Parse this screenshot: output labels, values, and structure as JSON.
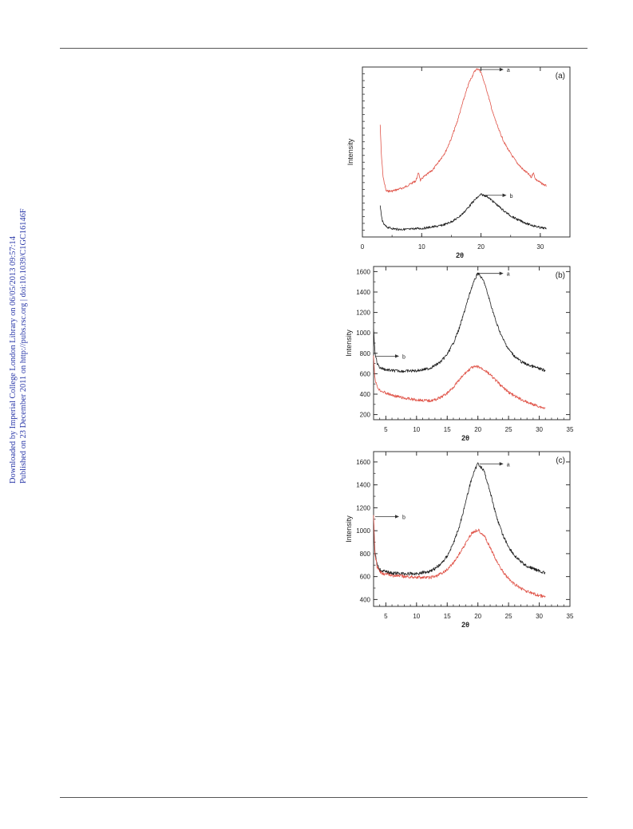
{
  "side_note": {
    "line1": "Downloaded by Imperial College London Library on 06/05/2013 09:57:14",
    "line2": "Published on 23 December 2011 on http://pubs.rsc.org | doi:10.1039/C1GC16146F"
  },
  "colors": {
    "black_series": "#1f1f1f",
    "red_series": "#e0554a",
    "frame": "#333333",
    "link_text": "#2a38a8"
  },
  "chart_data": [
    {
      "type": "line",
      "panel_label": "(a)",
      "xlabel": "2θ",
      "ylabel": "Intensity",
      "xlim": [
        0,
        35
      ],
      "x_ticks": [
        0,
        10,
        20,
        30
      ],
      "ylim": [
        0,
        100
      ],
      "y_tick_labels_shown": false,
      "series": [
        {
          "name": "a",
          "color": "#e0554a",
          "x": [
            3.0,
            3.2,
            3.5,
            4,
            5,
            6,
            7,
            8,
            9,
            9.5,
            9.8,
            10.2,
            11,
            12,
            13,
            14,
            15,
            16,
            17,
            18,
            19,
            19.5,
            20,
            21,
            22,
            23,
            24,
            25,
            26,
            27,
            28,
            28.5,
            28.8,
            29.2,
            30,
            31
          ],
          "y": [
            66,
            48,
            35,
            27,
            27,
            28,
            29,
            31,
            33,
            38,
            33,
            35,
            37,
            40,
            45,
            50,
            58,
            68,
            80,
            91,
            98,
            99,
            97,
            86,
            73,
            63,
            55,
            49,
            44,
            40,
            37,
            35,
            38,
            34,
            32,
            30
          ]
        },
        {
          "name": "b",
          "color": "#1f1f1f",
          "x": [
            3.0,
            3.2,
            3.5,
            4,
            5,
            6,
            7,
            8,
            9,
            10,
            11,
            12,
            13,
            14,
            15,
            16,
            17,
            18,
            19,
            20,
            21,
            22,
            23,
            24,
            25,
            26,
            27,
            28,
            29,
            30,
            31
          ],
          "y": [
            19,
            12,
            8,
            6,
            5,
            4.5,
            4.5,
            4.5,
            5,
            5,
            5.5,
            6,
            6.5,
            7.5,
            9,
            11,
            14,
            18,
            22,
            25,
            24,
            21,
            18,
            15,
            12.5,
            10.5,
            9,
            7.5,
            6.5,
            5.5,
            5
          ]
        }
      ],
      "annotations": [
        "a",
        "b"
      ]
    },
    {
      "type": "line",
      "panel_label": "(b)",
      "xlabel": "2θ",
      "ylabel": "Intensity",
      "xlim": [
        3,
        35
      ],
      "x_ticks": [
        5,
        10,
        15,
        20,
        25,
        30,
        35
      ],
      "ylim": [
        150,
        1650
      ],
      "y_ticks": [
        200,
        400,
        600,
        800,
        1000,
        1200,
        1400,
        1600
      ],
      "series": [
        {
          "name": "a",
          "color": "#1f1f1f",
          "x": [
            3.0,
            3.2,
            3.6,
            4,
            5,
            6,
            8,
            10,
            12,
            13,
            14,
            15,
            16,
            17,
            18,
            19,
            20,
            21,
            22,
            23,
            24,
            25,
            26,
            27,
            28,
            29,
            30,
            31
          ],
          "y": [
            1050,
            820,
            700,
            660,
            640,
            630,
            625,
            630,
            650,
            680,
            720,
            790,
            900,
            1050,
            1250,
            1450,
            1590,
            1500,
            1300,
            1100,
            950,
            840,
            770,
            720,
            690,
            670,
            650,
            630
          ]
        },
        {
          "name": "b",
          "color": "#e0554a",
          "x": [
            3.0,
            3.2,
            3.6,
            4,
            5,
            6,
            8,
            10,
            12,
            13,
            14,
            15,
            16,
            17,
            18,
            19,
            20,
            21,
            22,
            23,
            24,
            25,
            26,
            27,
            28,
            29,
            30,
            31
          ],
          "y": [
            780,
            560,
            470,
            440,
            410,
            390,
            360,
            345,
            335,
            345,
            370,
            410,
            470,
            540,
            610,
            660,
            670,
            640,
            590,
            530,
            470,
            420,
            380,
            350,
            320,
            300,
            280,
            260
          ]
        }
      ],
      "annotations": [
        "a",
        "b"
      ]
    },
    {
      "type": "line",
      "panel_label": "(c)",
      "xlabel": "2θ",
      "ylabel": "Intensity",
      "xlim": [
        3,
        35
      ],
      "x_ticks": [
        5,
        10,
        15,
        20,
        25,
        30,
        35
      ],
      "ylim": [
        340,
        1690
      ],
      "y_ticks": [
        400,
        600,
        800,
        1000,
        1200,
        1400,
        1600
      ],
      "series": [
        {
          "name": "a",
          "color": "#1f1f1f",
          "x": [
            3.0,
            3.2,
            3.6,
            4,
            5,
            6,
            8,
            10,
            12,
            13,
            14,
            15,
            16,
            17,
            18,
            19,
            20,
            21,
            22,
            23,
            24,
            25,
            26,
            27,
            28,
            29,
            30,
            31
          ],
          "y": [
            1100,
            820,
            700,
            660,
            640,
            630,
            625,
            625,
            645,
            670,
            710,
            780,
            890,
            1040,
            1250,
            1460,
            1590,
            1520,
            1340,
            1130,
            970,
            860,
            780,
            730,
            690,
            670,
            650,
            630
          ]
        },
        {
          "name": "b",
          "color": "#e0554a",
          "x": [
            3.0,
            3.2,
            3.6,
            4,
            5,
            6,
            8,
            10,
            12,
            13,
            14,
            15,
            16,
            17,
            18,
            19,
            20,
            21,
            22,
            23,
            24,
            25,
            26,
            27,
            28,
            29,
            30,
            31
          ],
          "y": [
            1130,
            800,
            680,
            640,
            620,
            610,
            600,
            595,
            590,
            600,
            625,
            660,
            720,
            800,
            890,
            980,
            1010,
            960,
            850,
            740,
            650,
            580,
            530,
            500,
            470,
            450,
            435,
            420
          ]
        }
      ],
      "annotations": [
        "a",
        "b"
      ]
    }
  ]
}
